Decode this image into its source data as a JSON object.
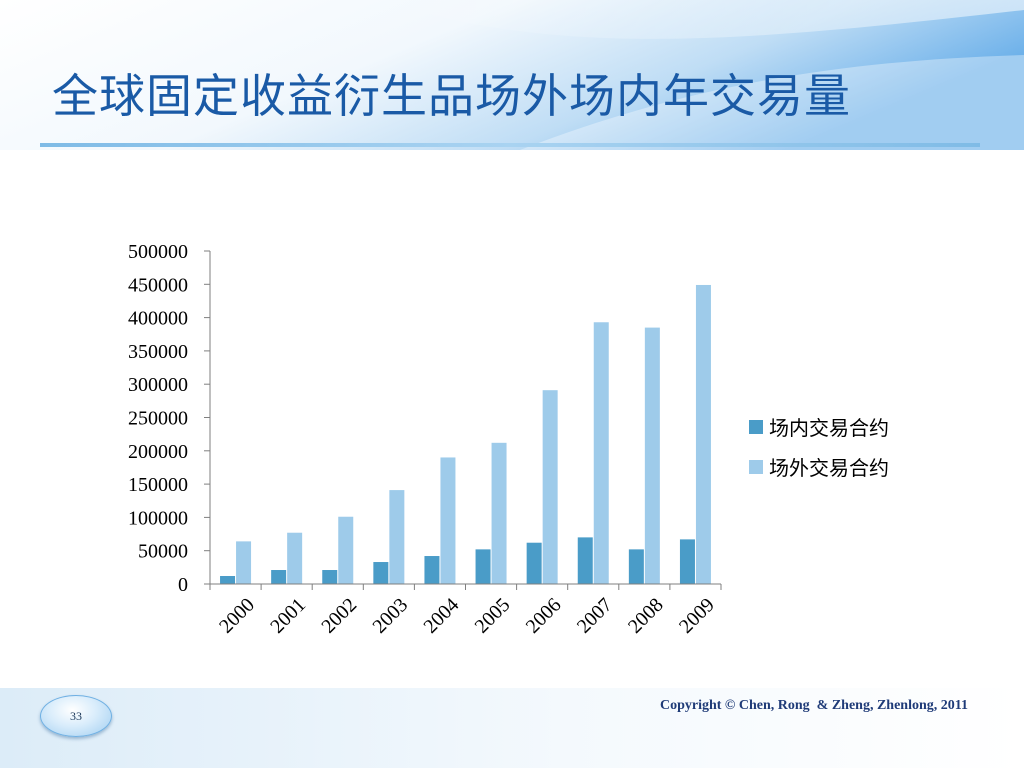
{
  "slide": {
    "title": "全球固定收益衍生品场外场内年交易量",
    "page_number": "33",
    "copyright": "Copyright © Chen, Rong  & Zheng, Zhenlong, 2011"
  },
  "colors": {
    "title": "#1a5aa6",
    "exchange_series": "#4a9cc8",
    "otc_series": "#9ecbea",
    "axis": "#7f7f7f"
  },
  "chart_data": {
    "type": "bar",
    "categories": [
      "2000",
      "2001",
      "2002",
      "2003",
      "2004",
      "2005",
      "2006",
      "2007",
      "2008",
      "2009"
    ],
    "series": [
      {
        "name": "场内交易合约",
        "values": [
          12000,
          21000,
          21000,
          33000,
          42000,
          52000,
          62000,
          70000,
          52000,
          67000
        ]
      },
      {
        "name": "场外交易合约",
        "values": [
          64000,
          77000,
          101000,
          141000,
          190000,
          212000,
          291000,
          393000,
          385000,
          449000
        ]
      }
    ],
    "yticks": [
      "0",
      "50000",
      "100000",
      "150000",
      "200000",
      "250000",
      "300000",
      "350000",
      "400000",
      "450000",
      "500000"
    ],
    "ylim": [
      0,
      500000
    ],
    "xlabel": "",
    "ylabel": "",
    "grid": false,
    "legend_position": "right",
    "xtick_rotation": -45
  }
}
